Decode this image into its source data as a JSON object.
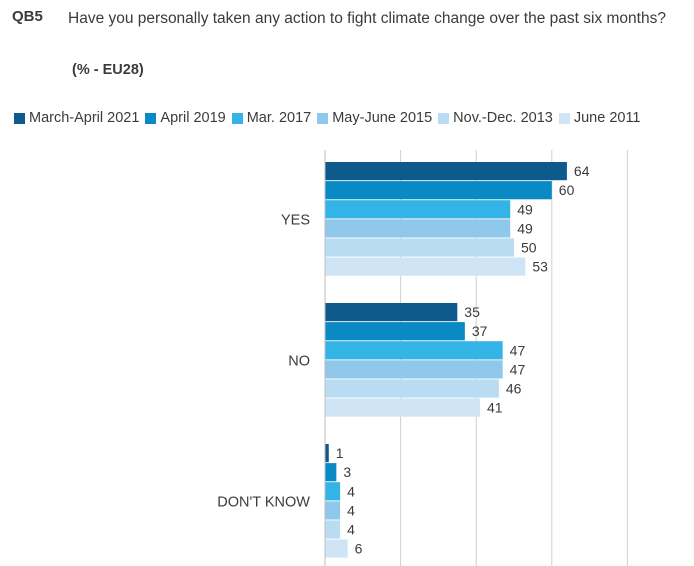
{
  "header": {
    "question_code": "QB5",
    "question_text": "Have you personally taken any action to fight climate change over the past six months?",
    "subtitle": "(% - EU28)"
  },
  "chart_data": {
    "type": "bar",
    "orientation": "horizontal",
    "categories": [
      "YES",
      "NO",
      "DON'T KNOW"
    ],
    "series": [
      {
        "name": "March-April 2021",
        "color": "#0d5b8c",
        "values": [
          64,
          35,
          1
        ]
      },
      {
        "name": "April 2019",
        "color": "#0a8ac4",
        "values": [
          60,
          37,
          3
        ]
      },
      {
        "name": "Mar. 2017",
        "color": "#33b3e6",
        "values": [
          49,
          47,
          4
        ]
      },
      {
        "name": "May-June 2015",
        "color": "#8fc8ea",
        "values": [
          49,
          47,
          4
        ]
      },
      {
        "name": "Nov.-Dec. 2013",
        "color": "#b9dcf2",
        "values": [
          50,
          46,
          4
        ]
      },
      {
        "name": "June 2011",
        "color": "#cfe5f6",
        "values": [
          53,
          41,
          6
        ]
      }
    ],
    "xlim": [
      0,
      80
    ],
    "grid": true,
    "legend_position": "top"
  }
}
